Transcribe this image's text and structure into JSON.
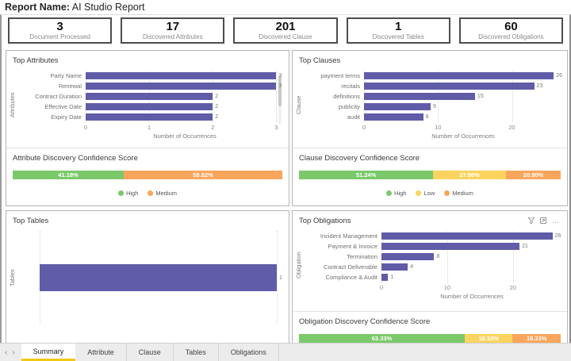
{
  "header": {
    "label": "Report Name:",
    "title": "AI Studio Report"
  },
  "kpis": [
    {
      "value": "3",
      "label": "Document Processed"
    },
    {
      "value": "17",
      "label": "Discovered Attributes"
    },
    {
      "value": "201",
      "label": "Discovered Clause"
    },
    {
      "value": "1",
      "label": "Discovered Tables"
    },
    {
      "value": "60",
      "label": "Discovered Obligations"
    }
  ],
  "colors": {
    "bar_purple": "#605CA8",
    "high_green": "#7BC96A",
    "low_yellow": "#FAD45F",
    "medium_orange": "#F9A65C",
    "active_tab_accent": "#F2C811"
  },
  "icons": {
    "more_label": "…"
  },
  "chart_data": [
    {
      "id": "attributes",
      "type": "bar",
      "title": "Top Attributes",
      "categories": [
        "Party Name",
        "Renewal",
        "Contract Duration",
        "Effective Date",
        "Expiry Date"
      ],
      "values": [
        3,
        3,
        2,
        2,
        2
      ],
      "ylabel": "Attributes",
      "xlabel": "Number of Occurrences",
      "ticks": [
        0,
        1,
        2,
        3
      ],
      "xmax": 3.12,
      "bar_color": "#605CA8",
      "grid": "vertical-dotted"
    },
    {
      "id": "clauses",
      "type": "bar",
      "title": "Top Clauses",
      "categories": [
        "payment terms",
        "recitals",
        "definitions",
        "publicity",
        "audit"
      ],
      "values": [
        26,
        23,
        15,
        9,
        8
      ],
      "ylabel": "Clause",
      "xlabel": "Number of Occurrences",
      "ticks": [
        0,
        10,
        20
      ],
      "xmax": 26.8,
      "bar_color": "#605CA8",
      "grid": "vertical-dotted"
    },
    {
      "id": "tables",
      "type": "bar",
      "title": "Top Tables",
      "categories": [
        ""
      ],
      "values": [
        1
      ],
      "ylabel": "Tables",
      "xlabel": "",
      "ticks": [
        0,
        1
      ],
      "xmax": 1.03,
      "tick_labels": false,
      "bar_color": "#605CA8",
      "grid": "vertical-dotted"
    },
    {
      "id": "obligations",
      "type": "bar",
      "title": "Top Obligations",
      "categories": [
        "Incident Management",
        "Payment & Invoice",
        "Termination",
        "Contract Deliverable",
        "Compliance & Audit"
      ],
      "values": [
        26,
        21,
        8,
        4,
        1
      ],
      "ylabel": "Obligation",
      "xlabel": "Number of Occurrences",
      "ticks": [
        0,
        10,
        20
      ],
      "xmax": 27.5,
      "bar_color": "#605CA8",
      "grid": "vertical-dotted"
    },
    {
      "id": "attribute_confidence",
      "type": "stacked-bar",
      "title": "Attribute Discovery Confidence Score",
      "segments": [
        {
          "name": "High",
          "label": "41.18%",
          "value": 41.18,
          "color": "#7BC96A"
        },
        {
          "name": "Medium",
          "label": "58.82%",
          "value": 58.82,
          "color": "#F9A65C"
        }
      ],
      "legend": [
        {
          "label": "High",
          "color": "#7BC96A"
        },
        {
          "label": "Medium",
          "color": "#F9A65C"
        }
      ]
    },
    {
      "id": "clause_confidence",
      "type": "stacked-bar",
      "title": "Clause Discovery Confidence Score",
      "segments": [
        {
          "name": "High",
          "label": "51.24%",
          "value": 51.24,
          "color": "#7BC96A"
        },
        {
          "name": "Low",
          "label": "27.86%",
          "value": 27.86,
          "color": "#FAD45F"
        },
        {
          "name": "Medium",
          "label": "20.90%",
          "value": 20.9,
          "color": "#F9A65C"
        }
      ],
      "legend": [
        {
          "label": "High",
          "color": "#7BC96A"
        },
        {
          "label": "Low",
          "color": "#FAD45F"
        },
        {
          "label": "Medium",
          "color": "#F9A65C"
        }
      ]
    },
    {
      "id": "obligation_confidence",
      "type": "stacked-bar",
      "title": "Obligation Discovery Confidence Score",
      "segments": [
        {
          "label": "63.33%",
          "value": 63.33,
          "color": "#7BC96A"
        },
        {
          "label": "18.33%",
          "value": 18.33,
          "color": "#FAD45F"
        },
        {
          "label": "18.33%",
          "value": 18.33,
          "color": "#F9A65C"
        }
      ],
      "legend": []
    }
  ],
  "tabs": {
    "nav_prev": "‹",
    "nav_next": "›",
    "items": [
      {
        "label": "Summary",
        "active": true
      },
      {
        "label": "Attribute",
        "active": false
      },
      {
        "label": "Clause",
        "active": false
      },
      {
        "label": "Tables",
        "active": false
      },
      {
        "label": "Obligations",
        "active": false
      }
    ]
  }
}
